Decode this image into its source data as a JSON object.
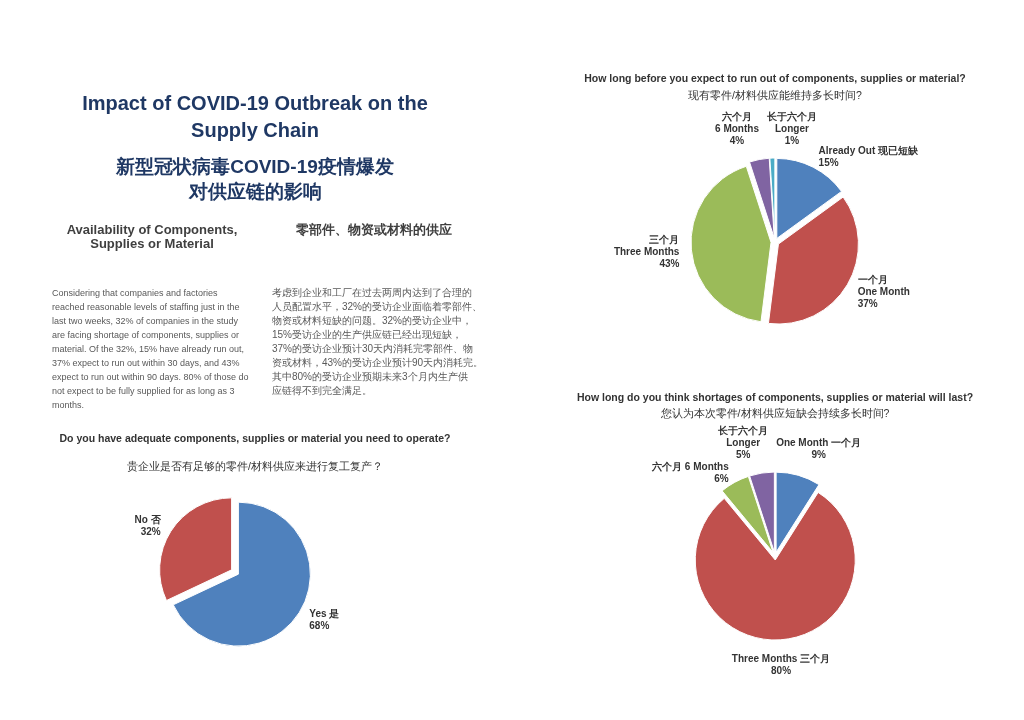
{
  "chart_data": [
    {
      "type": "other",
      "title": "Impact of COVID-19 Outbreak on the Supply Chain",
      "subtitle": "新型冠状病毒COVID-19疫情爆发对供应链的影响",
      "annotations": [
        "Availability of Components, Supplies or Material",
        "零部件、物资或材料的供应",
        "Considering that companies and factories reached reasonable levels of staffing just in the last two weeks, 32% of companies in the study are facing shortage of components, supplies or material. Of the 32%, 15% have already run out, 37% expect to run out within 30 days, and 43% expect to run out within 90 days. 80% of those do not expect to be fully supplied for as long as 3 months.",
        "考虑到企业和工厂在过去两周内达到了合理的人员配置水平，32%的受访企业面临着零部件、物资或材料短缺的问题。32%的受访企业中，15%受访企业的生产供应链已经出现短缺，37%的受访企业预计30天内消耗完零部件、物资或材料，43%的受访企业预计90天内消耗完。其中80%的受访企业预期未来3个月内生产供应链得不到完全满足。"
      ]
    },
    {
      "type": "pie",
      "title": "Do you have adequate components, supplies or material you need to operate?",
      "subtitle": "贵企业是否有足够的零件/材料供应来进行复工复产？",
      "categories": [
        "Yes 是",
        "No 否"
      ],
      "values": [
        68,
        32
      ],
      "value_labels": [
        "68%",
        "32%"
      ],
      "colors": [
        "#4f81bd",
        "#c0504d"
      ]
    },
    {
      "type": "pie",
      "title": "How long before you expect to run out of components, supplies or material?",
      "subtitle": "现有零件/材料供应能维持多长时间?",
      "categories": [
        "Already Out 现已短缺",
        "一个月\nOne Month",
        "三个月\nThree Months",
        "六个月\n6 Months",
        "长于六个月\nLonger"
      ],
      "values": [
        15,
        37,
        43,
        4,
        1
      ],
      "value_labels": [
        "15%",
        "37%",
        "43%",
        "4%",
        "1%"
      ],
      "colors": [
        "#4f81bd",
        "#c0504d",
        "#9bbb59",
        "#8064a2",
        "#4bacc6"
      ]
    },
    {
      "type": "pie",
      "title": "How long do you think shortages of components, supplies or material will last?",
      "subtitle": "您认为本次零件/材料供应短缺会持续多长时间?",
      "categories": [
        "One Month 一个月",
        "Three Months 三个月",
        "六个月 6 Months",
        "长于六个月\nLonger"
      ],
      "values": [
        9,
        80,
        6,
        5
      ],
      "value_labels": [
        "9%",
        "80%",
        "6%",
        "5%"
      ],
      "colors": [
        "#4f81bd",
        "#c0504d",
        "#9bbb59",
        "#8064a2"
      ]
    }
  ]
}
